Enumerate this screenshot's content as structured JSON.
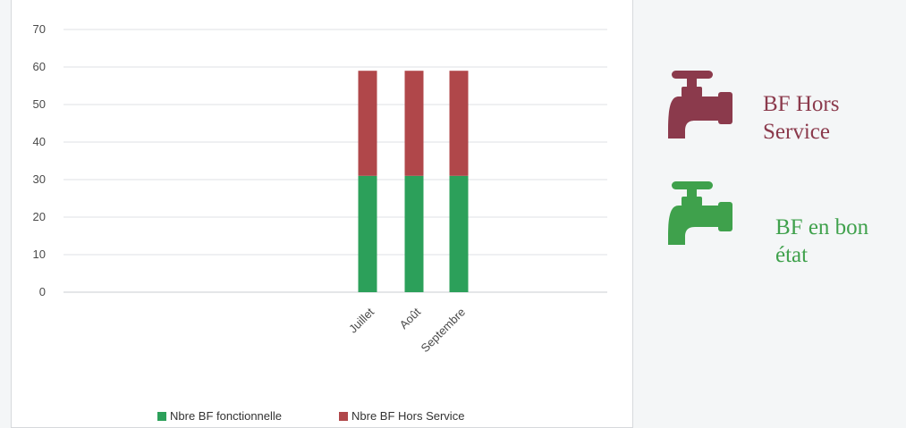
{
  "chart_data": {
    "type": "bar",
    "stacked": true,
    "categories": [
      "Juillet",
      "Août",
      "Septembre"
    ],
    "series": [
      {
        "name": "Nbre BF fonctionnelle",
        "color": "#2ca05a",
        "values": [
          31,
          31,
          31
        ]
      },
      {
        "name": "Nbre BF Hors Service",
        "color": "#b0474a",
        "values": [
          28,
          28,
          28
        ]
      }
    ],
    "ylim": [
      0,
      70
    ],
    "yticks": [
      0,
      10,
      20,
      30,
      40,
      50,
      60,
      70
    ],
    "grid": true,
    "legend_position": "bottom"
  },
  "side_labels": {
    "hors_service": "BF Hors Service",
    "bon_etat": "BF en bon état"
  },
  "colors": {
    "hors_service": "#8b3a4c",
    "bon_etat": "#3fa14c"
  },
  "icons": {
    "red": "faucet-icon",
    "green": "faucet-icon"
  }
}
